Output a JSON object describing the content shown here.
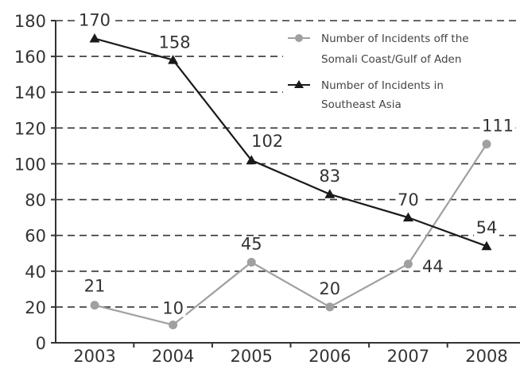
{
  "chart_data": {
    "type": "line",
    "categories": [
      "2003",
      "2004",
      "2005",
      "2006",
      "2007",
      "2008"
    ],
    "ylim": [
      0,
      180
    ],
    "yticks": [
      "0",
      "20",
      "40",
      "60",
      "80",
      "100",
      "120",
      "140",
      "160",
      "180"
    ],
    "grid": true,
    "legend_position": "top-right",
    "series": [
      {
        "name": "Number of Incidents off the Somali Coast/Gulf of Aden",
        "legend_lines": [
          "Number of Incidents off the",
          "Somali Coast/Gulf of Aden"
        ],
        "values": [
          21,
          10,
          45,
          20,
          44,
          111
        ],
        "labels": [
          "21",
          "10",
          "45",
          "20",
          "44",
          "111"
        ],
        "marker": "circle",
        "color": "#a0a0a0"
      },
      {
        "name": "Number of Incidents in Southeast Asia",
        "legend_lines": [
          "Number of Incidents in",
          "Southeast Asia"
        ],
        "values": [
          170,
          158,
          102,
          83,
          70,
          54
        ],
        "labels": [
          "170",
          "158",
          "102",
          "83",
          "70",
          "54"
        ],
        "marker": "triangle",
        "color": "#1a1a1a"
      }
    ]
  }
}
